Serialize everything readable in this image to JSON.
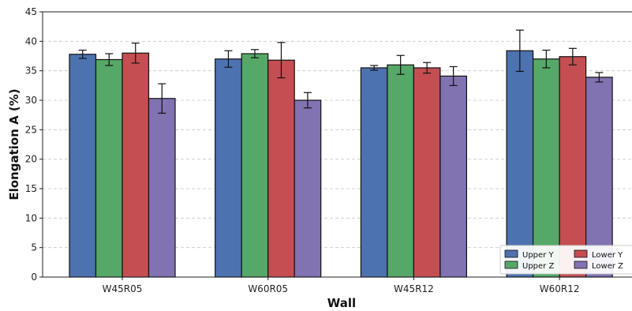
{
  "chart_data": {
    "type": "bar",
    "xlabel": "Wall",
    "ylabel": "Elongation A (%)",
    "ylim": [
      0,
      45
    ],
    "yticks": [
      0,
      5,
      10,
      15,
      20,
      25,
      30,
      35,
      40,
      45
    ],
    "grid": "horizontal-dashed",
    "legend_placement": "bottom-right",
    "categories": [
      "W45R05",
      "W60R05",
      "W45R12",
      "W60R12"
    ],
    "series": [
      {
        "name": "Upper Y",
        "color": "#4c72b0",
        "values": [
          37.8,
          37.0,
          35.5,
          38.4
        ],
        "errors": [
          0.7,
          1.4,
          0.4,
          3.5
        ]
      },
      {
        "name": "Upper Z",
        "color": "#55a868",
        "values": [
          36.9,
          37.9,
          36.0,
          37.0
        ],
        "errors": [
          1.0,
          0.7,
          1.6,
          1.5
        ]
      },
      {
        "name": "Lower Y",
        "color": "#c44e52",
        "values": [
          38.0,
          36.8,
          35.5,
          37.4
        ],
        "errors": [
          1.7,
          3.0,
          0.9,
          1.4
        ]
      },
      {
        "name": "Lower Z",
        "color": "#8172b2",
        "values": [
          30.3,
          30.0,
          34.1,
          33.9
        ],
        "errors": [
          2.5,
          1.3,
          1.6,
          0.8
        ]
      }
    ]
  }
}
